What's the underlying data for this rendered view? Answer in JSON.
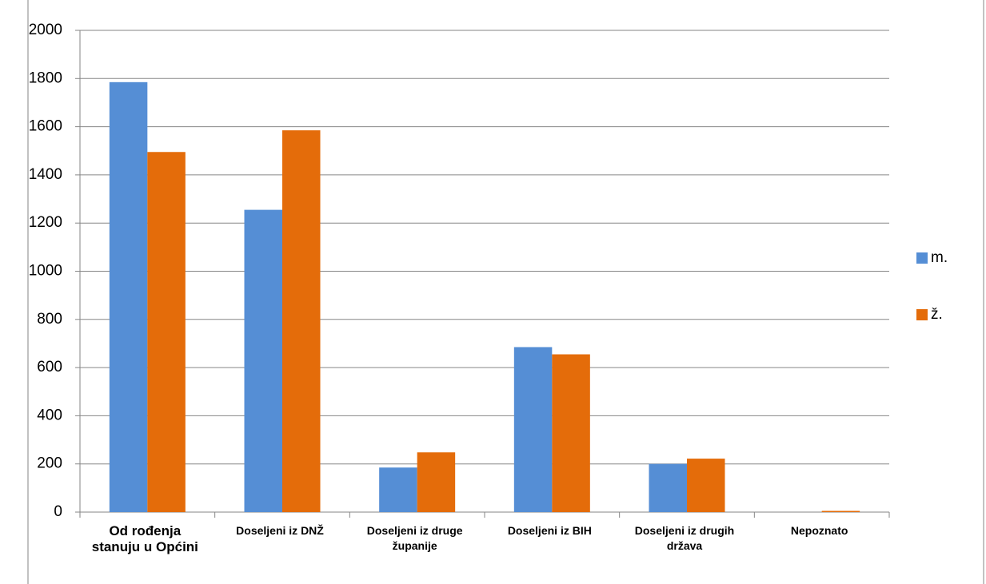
{
  "chart_data": {
    "type": "bar",
    "categories": [
      "Od rođenja stanuju u Općini",
      "Doseljeni iz DNŽ",
      "Doseljeni iz druge županije",
      "Doseljeni iz BIH",
      "Doseljeni iz drugih država",
      "Nepoznato"
    ],
    "series": [
      {
        "name": "m.",
        "color": "#558ed5",
        "values": [
          1785,
          1255,
          185,
          685,
          200,
          0
        ]
      },
      {
        "name": "ž.",
        "color": "#e46c0a",
        "values": [
          1495,
          1585,
          248,
          655,
          222,
          5
        ]
      }
    ],
    "ylim": [
      0,
      2000
    ],
    "yticks": [
      0,
      200,
      400,
      600,
      800,
      1000,
      1200,
      1400,
      1600,
      1800,
      2000
    ],
    "grid": true,
    "legend": "right"
  }
}
